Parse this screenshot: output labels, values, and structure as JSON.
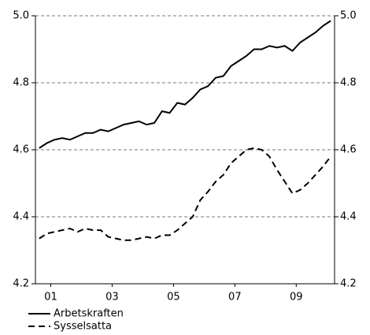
{
  "chart_data": {
    "type": "line",
    "x": [
      2001.125,
      2001.375,
      2001.625,
      2001.875,
      2002.125,
      2002.375,
      2002.625,
      2002.875,
      2003.125,
      2003.375,
      2003.625,
      2003.875,
      2004.125,
      2004.375,
      2004.625,
      2004.875,
      2005.125,
      2005.375,
      2005.625,
      2005.875,
      2006.125,
      2006.375,
      2006.625,
      2006.875,
      2007.125,
      2007.375,
      2007.625,
      2007.875,
      2008.125,
      2008.375,
      2008.625,
      2008.875,
      2009.125,
      2009.375,
      2009.625,
      2009.875,
      2010.125,
      2010.375,
      2010.625
    ],
    "series": [
      {
        "name": "Arbetskraften",
        "color": "#000000",
        "dash": "solid",
        "values": [
          4.605,
          4.62,
          4.63,
          4.635,
          4.63,
          4.64,
          4.65,
          4.65,
          4.66,
          4.655,
          4.665,
          4.675,
          4.68,
          4.685,
          4.675,
          4.68,
          4.715,
          4.71,
          4.74,
          4.735,
          4.755,
          4.78,
          4.79,
          4.815,
          4.82,
          4.85,
          4.865,
          4.88,
          4.9,
          4.9,
          4.91,
          4.905,
          4.91,
          4.895,
          4.92,
          4.935,
          4.95,
          4.97,
          4.985
        ]
      },
      {
        "name": "Sysselsatta",
        "color": "#000000",
        "dash": "dashed",
        "values": [
          4.335,
          4.35,
          4.355,
          4.36,
          4.365,
          4.355,
          4.365,
          4.36,
          4.36,
          4.34,
          4.335,
          4.33,
          4.33,
          4.335,
          4.34,
          4.335,
          4.345,
          4.345,
          4.36,
          4.38,
          4.4,
          4.45,
          4.475,
          4.505,
          4.525,
          4.56,
          4.58,
          4.6,
          4.605,
          4.6,
          4.58,
          4.54,
          4.505,
          4.47,
          4.48,
          4.5,
          4.525,
          4.55,
          4.58
        ]
      }
    ],
    "xlim": [
      2001,
      2010.75
    ],
    "xticks": [
      {
        "value": 2001.5,
        "label": "01"
      },
      {
        "value": 2003.5,
        "label": "03"
      },
      {
        "value": 2005.5,
        "label": "05"
      },
      {
        "value": 2007.5,
        "label": "07"
      },
      {
        "value": 2009.5,
        "label": "09"
      }
    ],
    "ylim": [
      4.2,
      5
    ],
    "yticks": [
      4.2,
      4.4,
      4.6,
      4.8,
      {
        "value": 5,
        "label": "5.0"
      }
    ],
    "y2lim": [
      4.2,
      5
    ],
    "y2ticks": [
      4.2,
      4.4,
      4.6,
      4.8,
      {
        "value": 5,
        "label": "5.0"
      }
    ],
    "grid": true
  }
}
